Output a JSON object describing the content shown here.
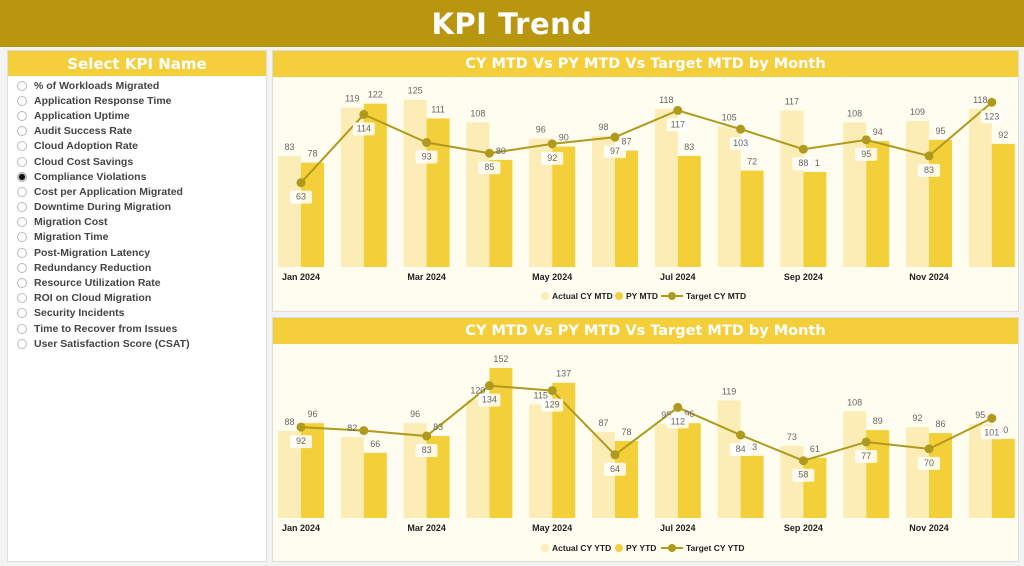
{
  "header": {
    "title": "KPI Trend"
  },
  "sidebar": {
    "title": "Select KPI Name",
    "selected_index": 6,
    "items": [
      "% of Workloads Migrated",
      "Application Response Time",
      "Application Uptime",
      "Audit Success Rate",
      "Cloud Adoption Rate",
      "Cloud Cost Savings",
      "Compliance Violations",
      "Cost per Application Migrated",
      "Downtime During Migration",
      "Migration Cost",
      "Migration Time",
      "Post-Migration Latency",
      "Redundancy Reduction",
      "Resource Utilization Rate",
      "ROI on Cloud Migration",
      "Security Incidents",
      "Time to Recover from Issues",
      "User Satisfaction Score (CSAT)"
    ]
  },
  "colors": {
    "header": "#B8960F",
    "panel_title": "#F5CF3B",
    "actual": "#FBEDB5",
    "py": "#F3CF3A",
    "target": "#B09A1E",
    "plot_bg": "#FFFDF0"
  },
  "chart_data": [
    {
      "type": "bar+line",
      "title": "CY MTD Vs PY MTD Vs Target MTD by Month",
      "categories": [
        "Jan 2024",
        "Feb 2024",
        "Mar 2024",
        "Apr 2024",
        "May 2024",
        "Jun 2024",
        "Jul 2024",
        "Aug 2024",
        "Sep 2024",
        "Oct 2024",
        "Nov 2024",
        "Dec 2024"
      ],
      "tick_labels": [
        "Jan 2024",
        "",
        "Mar 2024",
        "",
        "May 2024",
        "",
        "Jul 2024",
        "",
        "Sep 2024",
        "",
        "Nov 2024",
        ""
      ],
      "ylim": [
        0,
        130
      ],
      "legend_position": "bottom",
      "series": [
        {
          "name": "Actual CY MTD",
          "kind": "bar",
          "values": [
            83,
            119,
            125,
            108,
            96,
            98,
            118,
            105,
            117,
            108,
            109,
            118
          ]
        },
        {
          "name": "PY MTD",
          "kind": "bar",
          "values": [
            78,
            122,
            111,
            80,
            90,
            87,
            83,
            72,
            71,
            94,
            95,
            92
          ]
        },
        {
          "name": "Target CY MTD",
          "kind": "line",
          "values": [
            63,
            114,
            93,
            85,
            92,
            97,
            117,
            103,
            88,
            95,
            83,
            123
          ]
        }
      ]
    },
    {
      "type": "bar+line",
      "title": "CY MTD Vs PY MTD Vs Target MTD by Month",
      "categories": [
        "Jan 2024",
        "Feb 2024",
        "Mar 2024",
        "Apr 2024",
        "May 2024",
        "Jun 2024",
        "Jul 2024",
        "Aug 2024",
        "Sep 2024",
        "Oct 2024",
        "Nov 2024",
        "Dec 2024"
      ],
      "tick_labels": [
        "Jan 2024",
        "",
        "Mar 2024",
        "",
        "May 2024",
        "",
        "Jul 2024",
        "",
        "Sep 2024",
        "",
        "Nov 2024",
        ""
      ],
      "ylim": [
        0,
        160
      ],
      "legend_position": "bottom",
      "series": [
        {
          "name": "Actual CY YTD",
          "kind": "bar",
          "values": [
            88,
            82,
            96,
            120,
            115,
            87,
            95,
            119,
            73,
            108,
            92,
            95
          ]
        },
        {
          "name": "PY YTD",
          "kind": "bar",
          "values": [
            96,
            66,
            83,
            152,
            137,
            78,
            96,
            63,
            61,
            89,
            86,
            80
          ]
        },
        {
          "name": "Target CY YTD",
          "kind": "line",
          "values": [
            92,
            null,
            83,
            134,
            129,
            64,
            112,
            84,
            58,
            77,
            70,
            101
          ]
        }
      ]
    }
  ]
}
